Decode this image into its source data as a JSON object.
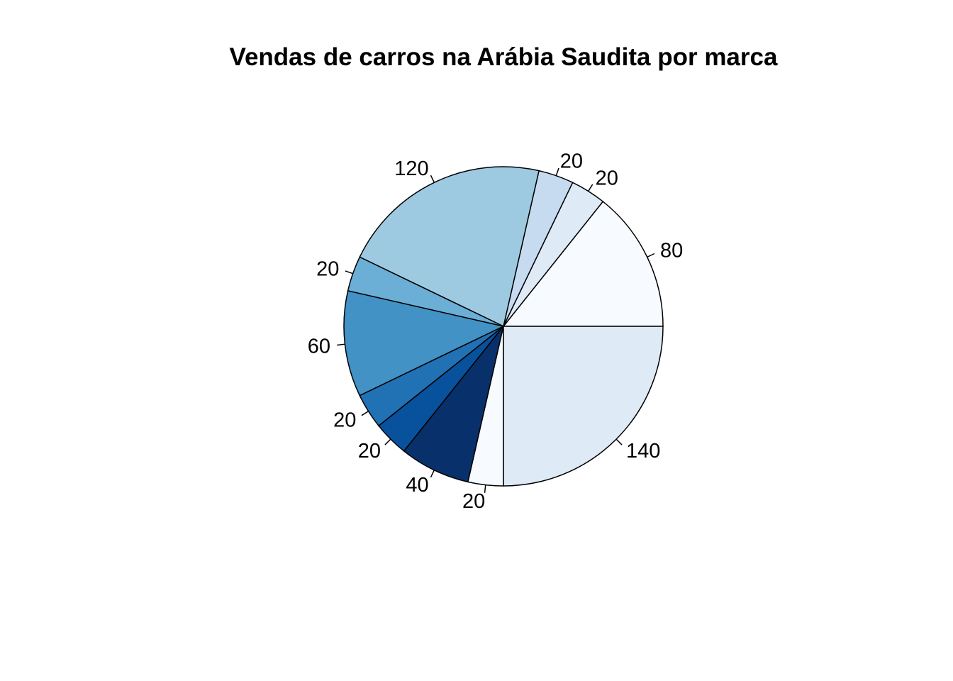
{
  "chart_data": {
    "type": "pie",
    "title": "Vendas de carros na Arábia Saudita por marca",
    "start_angle_deg": 0,
    "direction": "counterclockwise",
    "values": [
      80,
      20,
      20,
      120,
      20,
      60,
      20,
      20,
      40,
      20,
      140
    ],
    "labels": [
      "80",
      "20",
      "20",
      "120",
      "20",
      "60",
      "20",
      "20",
      "40",
      "20",
      "140"
    ],
    "colors": [
      "#F7FBFF",
      "#DEEBF7",
      "#C6DBEF",
      "#9ECAE1",
      "#6BAED6",
      "#4292C6",
      "#2171B5",
      "#08519C",
      "#08306B",
      "#F7FBFF",
      "#DEEBF7"
    ]
  }
}
